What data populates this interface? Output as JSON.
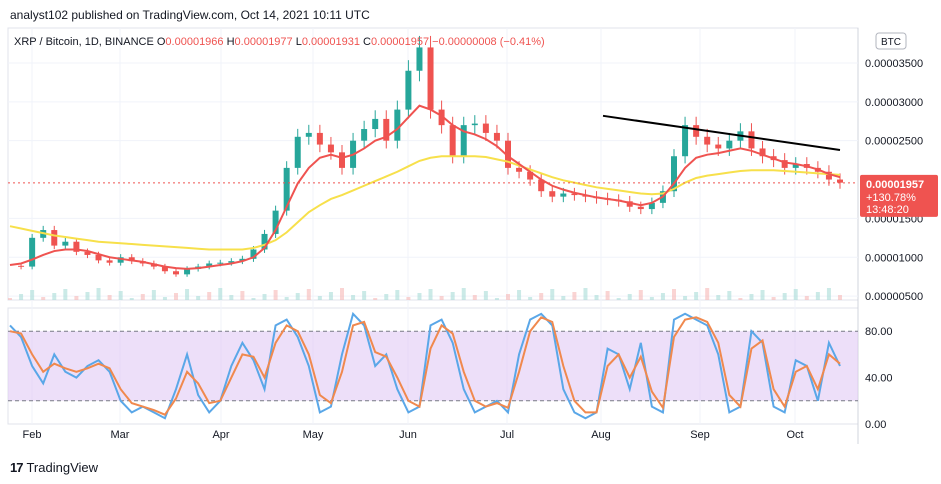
{
  "header": {
    "publish_line": "analyst102 published on TradingView.com, Oct 14, 2021 10:11 UTC"
  },
  "legend": {
    "symbol": "XRP / Bitcoin, 1D, BINANCE",
    "open_label": "O",
    "open": "0.00001966",
    "high_label": "H",
    "high": "0.00001977",
    "low_label": "L",
    "low": "0.00001931",
    "close_label": "C",
    "close": "0.00001957",
    "change": "−0.00000008 (−0.41%)"
  },
  "currency_badge": "BTC",
  "price_tag": {
    "price": "0.00001957",
    "change_pct": "+130.78%",
    "countdown": "13:48:20",
    "color": "#ef5350"
  },
  "footer": {
    "brand": "TradingView",
    "icon": "tradingview-logo-icon"
  },
  "colors": {
    "up": "#26a69a",
    "down": "#ef5350",
    "ma_fast": "#ef5350",
    "ma_slow": "#f7e04b",
    "trendline": "#000000",
    "stoch_k": "#5aa7e8",
    "stoch_d": "#f0894e",
    "stoch_band": "#e1c9f5"
  },
  "chart_data": [
    {
      "type": "candlestick",
      "title": "XRP / Bitcoin, 1D, BINANCE",
      "x_tick_labels": [
        "Feb",
        "Mar",
        "Apr",
        "May",
        "Jun",
        "Jul",
        "Aug",
        "Sep",
        "Oct"
      ],
      "y_tick_labels": [
        "0.00003500",
        "0.00003000",
        "0.00002500",
        "0.00001500",
        "0.00001000",
        "0.00000500"
      ],
      "y_range": [
        4.5e-06,
        3.95e-05
      ],
      "months": [
        "Feb",
        "Mar",
        "Apr",
        "May",
        "Jun",
        "Jul",
        "Aug",
        "Sep",
        "Oct"
      ],
      "close_path": [
        8.9e-06,
        8.8e-06,
        1.25e-05,
        1.35e-05,
        1.15e-05,
        1.2e-05,
        1.07e-05,
        1.03e-05,
        9.6e-06,
        9.3e-06,
        1e-05,
        9.5e-06,
        9.2e-06,
        8.8e-06,
        8.2e-06,
        7.8e-06,
        8.5e-06,
        8.8e-06,
        9.2e-06,
        9.3e-06,
        9.5e-06,
        9.8e-06,
        1.1e-05,
        1.3e-05,
        1.6e-05,
        2.15e-05,
        2.55e-05,
        2.6e-05,
        2.45e-05,
        2.35e-05,
        2.15e-05,
        2.5e-05,
        2.65e-05,
        2.78e-05,
        2.5e-05,
        2.9e-05,
        3.4e-05,
        3.7e-05,
        2.9e-05,
        2.7e-05,
        2.3e-05,
        2.7e-05,
        2.72e-05,
        2.6e-05,
        2.5e-05,
        2.15e-05,
        2.1e-05,
        2e-05,
        1.85e-05,
        1.78e-05,
        1.82e-05,
        1.8e-05,
        1.78e-05,
        1.76e-05,
        1.74e-05,
        1.72e-05,
        1.65e-05,
        1.62e-05,
        1.7e-05,
        1.85e-05,
        2.3e-05,
        2.7e-05,
        2.55e-05,
        2.45e-05,
        2.4e-05,
        2.5e-05,
        2.62e-05,
        2.4e-05,
        2.3e-05,
        2.25e-05,
        2.15e-05,
        2.2e-05,
        2.15e-05,
        2.1e-05,
        2e-05,
        1.96e-05
      ],
      "ma_fast_path": [
        9e-06,
        9.2e-06,
        9.7e-06,
        1.03e-05,
        1.08e-05,
        1.1e-05,
        1.1e-05,
        1.08e-05,
        1.04e-05,
        1e-05,
        9.8e-06,
        9.6e-06,
        9.4e-06,
        9.1e-06,
        8.8e-06,
        8.6e-06,
        8.5e-06,
        8.6e-06,
        8.8e-06,
        9e-06,
        9.2e-06,
        9.5e-06,
        1e-05,
        1.12e-05,
        1.35e-05,
        1.65e-05,
        1.95e-05,
        2.15e-05,
        2.28e-05,
        2.32e-05,
        2.28e-05,
        2.32e-05,
        2.4e-05,
        2.5e-05,
        2.55e-05,
        2.65e-05,
        2.8e-05,
        2.95e-05,
        2.9e-05,
        2.82e-05,
        2.7e-05,
        2.62e-05,
        2.58e-05,
        2.52e-05,
        2.43e-05,
        2.3e-05,
        2.2e-05,
        2.1e-05,
        2e-05,
        1.92e-05,
        1.87e-05,
        1.83e-05,
        1.8e-05,
        1.77e-05,
        1.75e-05,
        1.73e-05,
        1.7e-05,
        1.67e-05,
        1.7e-05,
        1.78e-05,
        1.95e-05,
        2.15e-05,
        2.28e-05,
        2.32e-05,
        2.34e-05,
        2.37e-05,
        2.4e-05,
        2.37e-05,
        2.32e-05,
        2.27e-05,
        2.22e-05,
        2.2e-05,
        2.17e-05,
        2.13e-05,
        2.07e-05,
        2.03e-05
      ],
      "ma_slow_path": [
        1.4e-05,
        1.37e-05,
        1.34e-05,
        1.31e-05,
        1.28e-05,
        1.26e-05,
        1.24e-05,
        1.22e-05,
        1.2e-05,
        1.19e-05,
        1.18e-05,
        1.17e-05,
        1.16e-05,
        1.15e-05,
        1.14e-05,
        1.13e-05,
        1.12e-05,
        1.11e-05,
        1.1e-05,
        1.1e-05,
        1.1e-05,
        1.1e-05,
        1.12e-05,
        1.16e-05,
        1.22e-05,
        1.32e-05,
        1.45e-05,
        1.58e-05,
        1.67e-05,
        1.75e-05,
        1.8e-05,
        1.86e-05,
        1.92e-05,
        1.98e-05,
        2.04e-05,
        2.1e-05,
        2.17e-05,
        2.24e-05,
        2.28e-05,
        2.3e-05,
        2.3e-05,
        2.3e-05,
        2.3e-05,
        2.29e-05,
        2.26e-05,
        2.23e-05,
        2.18e-05,
        2.13e-05,
        2.08e-05,
        2.03e-05,
        1.99e-05,
        1.96e-05,
        1.93e-05,
        1.9e-05,
        1.88e-05,
        1.86e-05,
        1.84e-05,
        1.82e-05,
        1.81e-05,
        1.82e-05,
        1.88e-05,
        1.96e-05,
        2.02e-05,
        2.05e-05,
        2.07e-05,
        2.09e-05,
        2.11e-05,
        2.12e-05,
        2.12e-05,
        2.12e-05,
        2.11e-05,
        2.1e-05,
        2.09e-05,
        2.08e-05,
        2.07e-05,
        2.06e-05
      ],
      "trendline": {
        "from": 2.82e-05,
        "to": 2.38e-05
      },
      "last_price_line": 1.957e-05
    },
    {
      "type": "line",
      "title": "Stochastic RSI",
      "y_tick_labels": [
        "80.00",
        "40.00",
        "0.00"
      ],
      "ylim": [
        0,
        100
      ],
      "bands": [
        20,
        80
      ],
      "series": [
        {
          "values": [
            85,
            75,
            50,
            35,
            60,
            45,
            40,
            50,
            55,
            45,
            20,
            10,
            15,
            10,
            5,
            30,
            60,
            25,
            10,
            20,
            50,
            70,
            55,
            30,
            85,
            90,
            75,
            50,
            10,
            15,
            60,
            95,
            85,
            50,
            60,
            30,
            10,
            15,
            85,
            90,
            70,
            30,
            10,
            15,
            20,
            10,
            60,
            90,
            95,
            85,
            30,
            10,
            5,
            10,
            65,
            60,
            30,
            70,
            15,
            10,
            90,
            95,
            90,
            85,
            60,
            10,
            15,
            80,
            70,
            15,
            10,
            55,
            50,
            20,
            70,
            50
          ]
        },
        {
          "values": [
            80,
            78,
            60,
            45,
            52,
            48,
            45,
            48,
            52,
            48,
            30,
            18,
            15,
            12,
            8,
            22,
            45,
            35,
            18,
            20,
            40,
            60,
            58,
            40,
            70,
            85,
            80,
            60,
            25,
            18,
            45,
            85,
            88,
            62,
            58,
            40,
            20,
            15,
            65,
            85,
            78,
            45,
            20,
            15,
            18,
            14,
            45,
            80,
            92,
            88,
            50,
            20,
            10,
            10,
            50,
            60,
            40,
            58,
            28,
            14,
            75,
            90,
            92,
            88,
            70,
            25,
            15,
            65,
            72,
            30,
            15,
            45,
            50,
            30,
            60,
            52
          ]
        }
      ]
    }
  ]
}
